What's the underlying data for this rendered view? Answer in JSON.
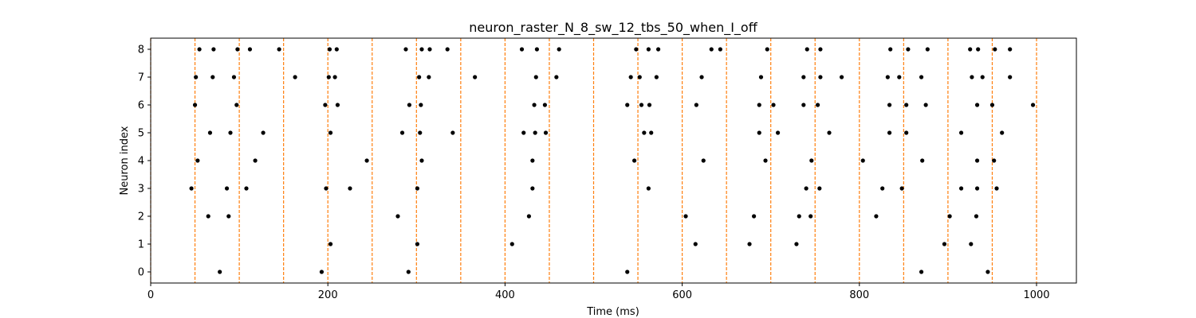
{
  "chart_data": {
    "type": "scatter",
    "title": "neuron_raster_N_8_sw_12_tbs_50_when_I_off",
    "xlabel": "Time (ms)",
    "ylabel": "Neuron index",
    "xlim": [
      0,
      1045
    ],
    "ylim": [
      -0.4,
      8.4
    ],
    "xticks": [
      0,
      200,
      400,
      600,
      800,
      1000
    ],
    "yticks": [
      0,
      1,
      2,
      3,
      4,
      5,
      6,
      7,
      8
    ],
    "grid": false,
    "vlines": [
      0,
      50,
      100,
      150,
      200,
      250,
      300,
      350,
      400,
      450,
      500,
      550,
      600,
      650,
      700,
      750,
      800,
      850,
      900,
      950,
      1000
    ],
    "vline_color": "#ff7f0e",
    "marker_color": "#000000",
    "spikes": [
      {
        "neuron": 0,
        "times": [
          78,
          193,
          291,
          538,
          870,
          945
        ]
      },
      {
        "neuron": 1,
        "times": [
          203,
          301,
          408,
          615,
          676,
          729,
          896,
          926
        ]
      },
      {
        "neuron": 2,
        "times": [
          65,
          88,
          279,
          427,
          604,
          681,
          732,
          745,
          819,
          902,
          932
        ]
      },
      {
        "neuron": 3,
        "times": [
          46,
          86,
          108,
          198,
          225,
          301,
          431,
          562,
          740,
          755,
          826,
          848,
          915,
          933,
          955
        ]
      },
      {
        "neuron": 4,
        "times": [
          53,
          118,
          244,
          306,
          431,
          546,
          624,
          694,
          746,
          804,
          871,
          933,
          952
        ]
      },
      {
        "neuron": 5,
        "times": [
          67,
          90,
          127,
          203,
          284,
          304,
          341,
          421,
          434,
          446,
          557,
          565,
          687,
          708,
          766,
          834,
          853,
          915,
          961
        ]
      },
      {
        "neuron": 6,
        "times": [
          50,
          97,
          197,
          211,
          292,
          305,
          433,
          445,
          538,
          554,
          563,
          616,
          687,
          703,
          737,
          753,
          834,
          853,
          875,
          933,
          950,
          996
        ]
      },
      {
        "neuron": 7,
        "times": [
          51,
          70,
          94,
          163,
          201,
          208,
          303,
          314,
          366,
          435,
          458,
          542,
          552,
          571,
          622,
          689,
          737,
          756,
          780,
          832,
          845,
          870,
          927,
          939,
          970
        ]
      },
      {
        "neuron": 8,
        "times": [
          55,
          71,
          98,
          112,
          145,
          202,
          210,
          288,
          306,
          315,
          335,
          419,
          436,
          461,
          548,
          562,
          573,
          633,
          643,
          696,
          741,
          756,
          835,
          855,
          877,
          925,
          934,
          953,
          970
        ]
      }
    ]
  }
}
